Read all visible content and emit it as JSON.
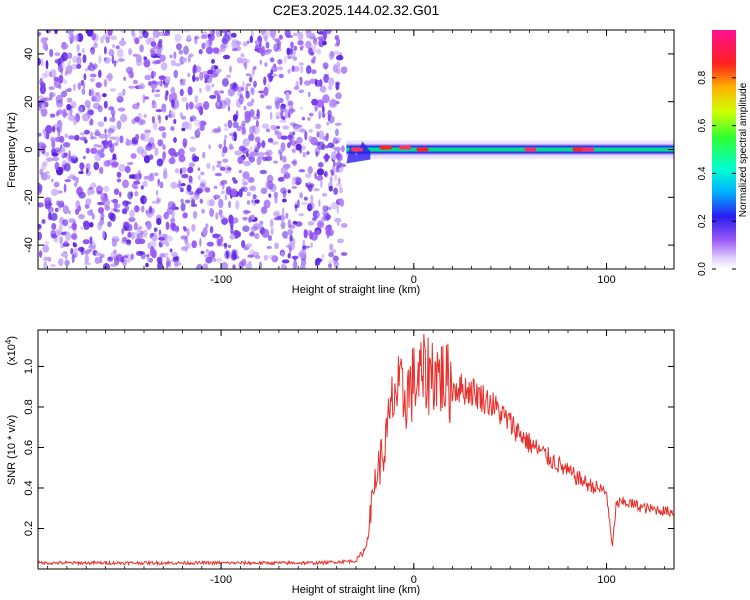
{
  "title": "C2E3.2025.144.02.32.G01",
  "colors": {
    "noise": "#7a3cf0",
    "snr_line": "#e8302c",
    "axis": "#000000"
  },
  "chart_data": [
    {
      "type": "heatmap",
      "xlabel": "Height of straight line (km)",
      "ylabel": "Frequency (Hz)",
      "xlim": [
        -195,
        135
      ],
      "ylim": [
        -50,
        50
      ],
      "xticks": [
        {
          "v": -100,
          "label": "-100"
        },
        {
          "v": 0,
          "label": "0"
        },
        {
          "v": 100,
          "label": "100"
        }
      ],
      "yticks": [
        {
          "v": -40,
          "label": "-40"
        },
        {
          "v": -20,
          "label": "-20"
        },
        {
          "v": 0,
          "label": "0"
        },
        {
          "v": 20,
          "label": "20"
        },
        {
          "v": 40,
          "label": "40"
        }
      ],
      "noise_region": [
        -195,
        -35
      ],
      "signal_band": {
        "x_start": -35,
        "x_end": 135,
        "center_freq": 0
      },
      "colorbar": {
        "label": "Normalized spectral amplitude",
        "range": [
          0,
          1
        ],
        "ticks": [
          {
            "v": 0.0,
            "label": "0.0"
          },
          {
            "v": 0.2,
            "label": "0.2"
          },
          {
            "v": 0.4,
            "label": "0.4"
          },
          {
            "v": 0.6,
            "label": "0.6"
          },
          {
            "v": 0.8,
            "label": "0.8"
          }
        ]
      }
    },
    {
      "type": "line",
      "xlabel": "Height of straight line (km)",
      "ylabel": "SNR (10 * v/v)",
      "scale_label": "(x10",
      "scale_exp": "4",
      "xlim": [
        -195,
        135
      ],
      "ylim": [
        0,
        1.18
      ],
      "xticks": [
        {
          "v": -100,
          "label": "-100"
        },
        {
          "v": 0,
          "label": "0"
        },
        {
          "v": 100,
          "label": "100"
        }
      ],
      "yticks": [
        {
          "v": 0.2,
          "label": "0.2"
        },
        {
          "v": 0.4,
          "label": "0.4"
        },
        {
          "v": 0.6,
          "label": "0.6"
        },
        {
          "v": 0.8,
          "label": "0.8"
        },
        {
          "v": 1.0,
          "label": "1.0"
        }
      ],
      "series": [
        {
          "x": [
            -195,
            -150,
            -100,
            -50,
            -30,
            -25,
            -20,
            -15,
            -10,
            -5,
            0,
            5,
            10,
            20,
            30,
            40,
            50,
            60,
            70,
            80,
            90,
            100,
            103,
            105,
            110,
            120,
            135
          ],
          "y": [
            0.03,
            0.03,
            0.03,
            0.03,
            0.04,
            0.1,
            0.45,
            0.6,
            0.88,
            0.85,
            0.92,
            0.95,
            0.98,
            0.9,
            0.88,
            0.82,
            0.72,
            0.62,
            0.55,
            0.48,
            0.42,
            0.38,
            0.1,
            0.32,
            0.33,
            0.3,
            0.28
          ]
        }
      ]
    }
  ]
}
